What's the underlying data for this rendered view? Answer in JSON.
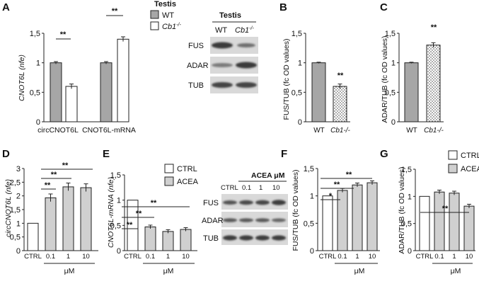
{
  "panel_labels": {
    "A": "A",
    "B": "B",
    "C": "C",
    "D": "D",
    "E": "E",
    "F": "F",
    "G": "G"
  },
  "colors": {
    "gray_bar": "#a6a6a6",
    "white_bar": "#ffffff",
    "light_gray_bar": "#d0d0d0",
    "axis": "#222222",
    "blot_bg": "#d9d9d9",
    "blot_band": "#3c3c3c"
  },
  "legend_A": {
    "title": "Testis",
    "wt": "WT",
    "cb1": "Cb1"
  },
  "legend_E": {
    "ctrl": "CTRL",
    "acea": "ACEA"
  },
  "legend_G": {
    "ctrl": "CTRL",
    "acea": "ACEA"
  },
  "blot_A": {
    "title": "Testis",
    "col1": "WT",
    "col2": "Cb1",
    "bands": [
      "FUS",
      "ADAR",
      "TUB"
    ]
  },
  "blot_E": {
    "title": "ACEA μM",
    "cols": [
      "CTRL",
      "0.1",
      "1",
      "10"
    ],
    "bands": [
      "FUS",
      "ADAR",
      "TUB"
    ]
  },
  "chart_data": [
    {
      "panel": "A",
      "type": "bar",
      "ylabel": "CNOT6L (nfe)",
      "ylim": [
        0,
        1.5
      ],
      "yticks": [
        "0",
        "0,5",
        "1",
        "1,5"
      ],
      "categories": [
        "circCNOT6L",
        "CNOT6L-mRNA"
      ],
      "series": [
        {
          "name": "WT",
          "values": [
            1.0,
            1.0
          ]
        },
        {
          "name": "Cb1-/-",
          "values": [
            0.6,
            1.4
          ]
        }
      ],
      "annotations": [
        "**",
        "**"
      ]
    },
    {
      "panel": "B",
      "type": "bar",
      "ylabel": "FUS/TUB (fc OD values)",
      "ylim": [
        0,
        1.5
      ],
      "yticks": [
        "0",
        "0,5",
        "1",
        "1,5"
      ],
      "categories": [
        "WT",
        "Cb1-/-"
      ],
      "values": [
        1.0,
        0.6
      ],
      "annotations": [
        "**"
      ]
    },
    {
      "panel": "C",
      "type": "bar",
      "ylabel": "ADAR/TUB (fc OD values)",
      "ylim": [
        0,
        1.5
      ],
      "yticks": [
        "0",
        "0,5",
        "1",
        "1,5"
      ],
      "categories": [
        "WT",
        "Cb1-/-"
      ],
      "values": [
        1.0,
        1.3
      ],
      "annotations": [
        "**"
      ]
    },
    {
      "panel": "D",
      "type": "bar",
      "ylabel": "circCNOT6L (nfe)",
      "xlabel": "μM",
      "ylim": [
        0,
        3
      ],
      "yticks": [
        "0",
        "0,5",
        "1",
        "1,5",
        "2",
        "2,5",
        "3"
      ],
      "categories": [
        "CTRL",
        "0.1",
        "1",
        "10"
      ],
      "values": [
        1.0,
        1.93,
        2.33,
        2.3
      ],
      "annotations": [
        "**",
        "**",
        "**"
      ]
    },
    {
      "panel": "E",
      "type": "bar",
      "ylabel": "CNOT6L-mRNA (nfe)",
      "xlabel": "μM",
      "ylim": [
        0,
        1.5
      ],
      "yticks": [
        "0",
        "0,5",
        "1",
        "1,5"
      ],
      "categories": [
        "CTRL",
        "0.1",
        "1",
        "10"
      ],
      "values": [
        1.0,
        0.47,
        0.38,
        0.42
      ],
      "annotations": [
        "**",
        "**",
        "**"
      ]
    },
    {
      "panel": "F",
      "type": "bar",
      "ylabel": "FUS/TUB (fc OD values)",
      "xlabel": "μM",
      "ylim": [
        0,
        1.5
      ],
      "yticks": [
        "0",
        "0,5",
        "1",
        "1,5"
      ],
      "categories": [
        "CTRL",
        "0.1",
        "1",
        "10"
      ],
      "values": [
        1.0,
        1.1,
        1.2,
        1.24
      ],
      "annotations": [
        "*",
        "**",
        "**"
      ]
    },
    {
      "panel": "G",
      "type": "bar",
      "ylabel": "ADAR/TUB (fc OD values)",
      "xlabel": "μM",
      "ylim": [
        0,
        1.5
      ],
      "yticks": [
        "0",
        "0,5",
        "1",
        "1,5"
      ],
      "categories": [
        "CTRL",
        "0.1",
        "1",
        "10"
      ],
      "values": [
        1.0,
        1.08,
        1.06,
        0.82
      ],
      "annotations": [
        "**"
      ]
    }
  ]
}
